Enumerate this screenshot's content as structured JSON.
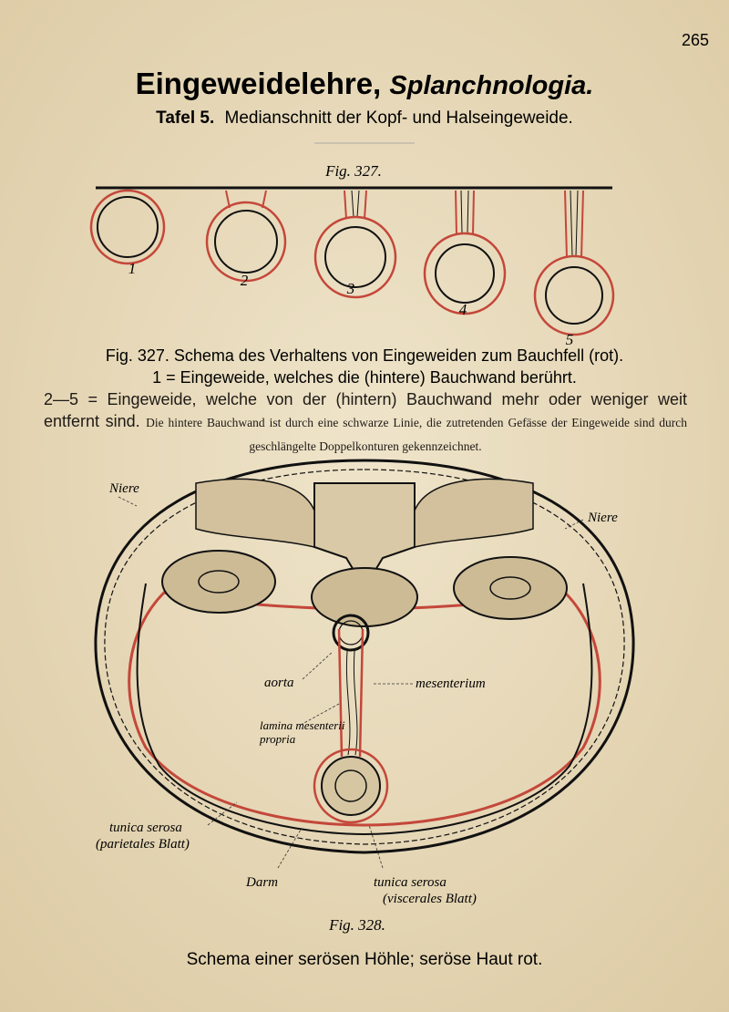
{
  "page_number": "265",
  "header": {
    "title": "Eingeweidelehre,",
    "title_latin": "Splanchnologia.",
    "plate": "Tafel 5.",
    "subtitle": "Medianschnitt der Kopf- und Halseingeweide."
  },
  "figure_327": {
    "label": "Fig. 327.",
    "numbers": [
      "1",
      "2",
      "3",
      "4",
      "5"
    ],
    "caption": {
      "lead": "Fig. 327. Schema des Verhaltens von Eingeweiden zum Bauchfell (rot).",
      "line1": "1 = Eingeweide, welches die (hintere) Bauchwand berührt.",
      "line2": "2—5 = Eingeweide, welche von der (hintern) Bauchwand mehr oder weniger weit entfernt sind.",
      "note": "Die hintere Bauchwand ist durch eine schwarze Linie, die zutretenden Gefässe der Eingeweide sind durch geschlängelte Doppelkonturen gekennzeichnet."
    }
  },
  "figure_328": {
    "labels": {
      "kidney_left": "Niere",
      "kidney_right": "Niere",
      "aorta": "aorta",
      "mesentery": "mesenterium",
      "lamina_1": "lamina mesenterii",
      "lamina_2": "propria",
      "serosa_parietal_1": "tunica serosa",
      "serosa_parietal_2": "(parietales Blatt)",
      "gut": "Darm",
      "serosa_visceral_1": "tunica serosa",
      "serosa_visceral_2": "(viscerales Blatt)"
    },
    "label": "Fig. 328.",
    "caption": "Schema einer serösen Höhle; seröse Haut rot."
  }
}
